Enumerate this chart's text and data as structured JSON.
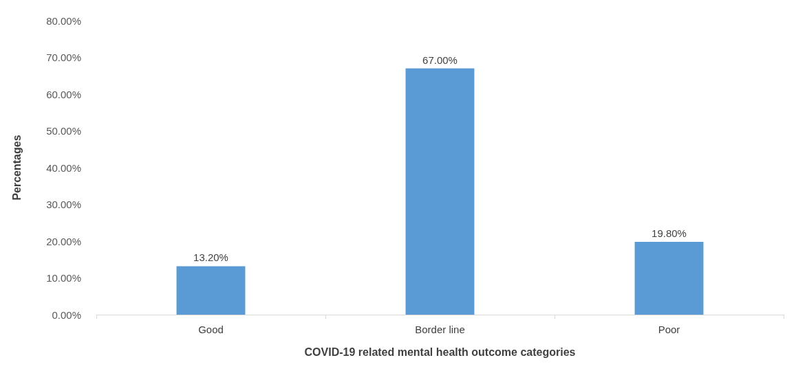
{
  "chart_data": {
    "type": "bar",
    "xlabel": "COVID-19 related mental health outcome categories",
    "ylabel": "Percentages",
    "categories": [
      "Good",
      "Border line",
      "Poor"
    ],
    "values": [
      13.2,
      67,
      19.8
    ],
    "value_labels": [
      "13.20%",
      "67.00%",
      "19.80%"
    ],
    "color": "#5b9bd5",
    "ylim": [
      0,
      80
    ],
    "yticks": [
      {
        "value": 0,
        "label": "0.00%"
      },
      {
        "value": 10,
        "label": "10.00%"
      },
      {
        "value": 20,
        "label": "20.00%"
      },
      {
        "value": 30,
        "label": "30.00%"
      },
      {
        "value": 40,
        "label": "40.00%"
      },
      {
        "value": 50,
        "label": "50.00%"
      },
      {
        "value": 60,
        "label": "60.00%"
      },
      {
        "value": 70,
        "label": "70.00%"
      },
      {
        "value": 80,
        "label": "80.00%"
      }
    ],
    "grid": false
  }
}
